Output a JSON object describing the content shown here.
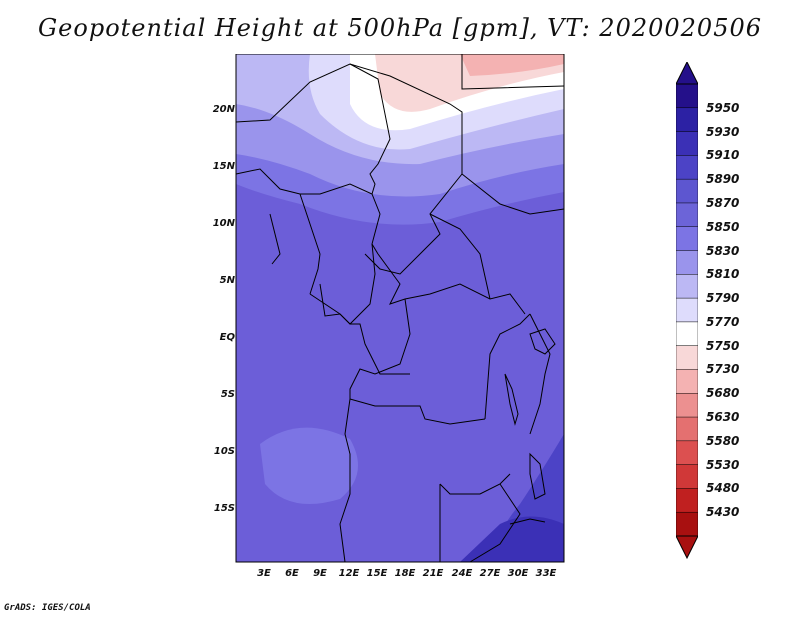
{
  "title": "Geopotential Height at 500hPa [gpm], VT: 2020020506",
  "footer_credit": "GrADS: IGES/COLA",
  "lat_labels": [
    "20N",
    "15N",
    "10N",
    "5N",
    "EQ",
    "5S",
    "10S",
    "15S"
  ],
  "lon_labels": [
    "3E",
    "6E",
    "9E",
    "12E",
    "15E",
    "18E",
    "21E",
    "24E",
    "27E",
    "30E",
    "33E"
  ],
  "colorbar": {
    "labels": [
      "5950",
      "5930",
      "5910",
      "5890",
      "5870",
      "5850",
      "5830",
      "5810",
      "5790",
      "5770",
      "5750",
      "5730",
      "5680",
      "5630",
      "5580",
      "5530",
      "5480",
      "5430"
    ],
    "colors": [
      "#24108a",
      "#2c21a4",
      "#3b30b6",
      "#4c43c6",
      "#5d56d0",
      "#6c64d8",
      "#7c74e4",
      "#9a94ec",
      "#bcb8f4",
      "#dedcfc",
      "#ffffff",
      "#f8d8d8",
      "#f4b2b2",
      "#ec9090",
      "#e47070",
      "#dc5050",
      "#d03838",
      "#c02020",
      "#a81010"
    ]
  },
  "map": {
    "region": "Central Africa",
    "fill_colors": {
      "deep": "#4c43c6",
      "base": "#6c5ed8",
      "light": "#7c74e4",
      "lighter": "#9a94ec",
      "pale": "#bcb8f4",
      "paler": "#dedcfc",
      "white": "#ffffff",
      "pink": "#f8d8d8",
      "salmon": "#f4b2b2"
    }
  }
}
